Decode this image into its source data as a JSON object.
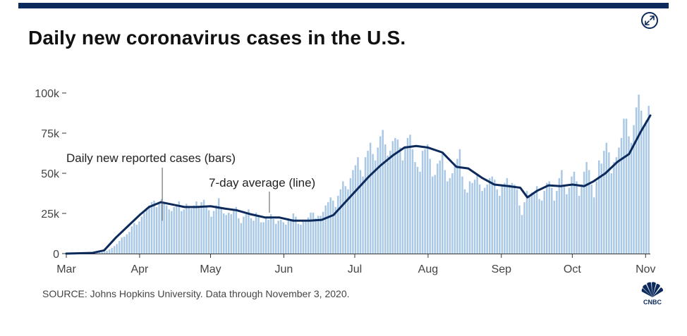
{
  "header": {
    "title": "Daily new coronavirus cases in the U.S."
  },
  "footer": {
    "source": "SOURCE: Johns Hopkins University. Data through November 3, 2020.",
    "logo_text": "CNBC"
  },
  "icons": {
    "expand": "expand-icon",
    "logo": "cnbc-peacock-logo"
  },
  "colors": {
    "bars": "#a9c8e6",
    "line": "#0c2a5b",
    "text": "#444444"
  },
  "chart_data": {
    "type": "bar",
    "title": "Daily new coronavirus cases in the U.S.",
    "x_tick_labels": [
      "Mar",
      "Apr",
      "May",
      "Jun",
      "Jul",
      "Aug",
      "Sep",
      "Oct",
      "Nov"
    ],
    "y_tick_labels": [
      "0",
      "25k",
      "50k",
      "75k",
      "100k"
    ],
    "y_ticks": [
      0,
      25000,
      50000,
      75000,
      100000
    ],
    "ylim": [
      0,
      100000
    ],
    "x_range": [
      "2020-03-01",
      "2020-11-03"
    ],
    "grid": false,
    "annotations": [
      {
        "text": "Daily new reported cases (bars)",
        "date": "2020-04-10",
        "value": 38000
      },
      {
        "text": "7-day average (line)",
        "date": "2020-05-25",
        "value": 25000
      }
    ],
    "series": [
      {
        "kind": "bars",
        "values": [
          0,
          0,
          0,
          0,
          0,
          0,
          100,
          150,
          200,
          300,
          400,
          500,
          600,
          700,
          900,
          1200,
          1700,
          2600,
          3500,
          4700,
          6000,
          7900,
          10000,
          10500,
          12000,
          13500,
          17000,
          19000,
          18000,
          20000,
          23000,
          25500,
          28500,
          30000,
          32000,
          33000,
          29000,
          31000,
          34000,
          32000,
          30000,
          27500,
          26500,
          29000,
          30500,
          32500,
          26500,
          27500,
          31000,
          29500,
          28000,
          30000,
          32500,
          28500,
          32000,
          33500,
          29000,
          27000,
          23000,
          26500,
          30000,
          34500,
          28000,
          25000,
          24000,
          25500,
          24500,
          27000,
          29000,
          22000,
          19000,
          23000,
          24500,
          27500,
          22000,
          20500,
          25500,
          23500,
          19500,
          19500,
          22000,
          21000,
          24500,
          21500,
          18500,
          20500,
          21000,
          19500,
          18000,
          22000,
          20500,
          25000,
          23000,
          18500,
          18000,
          21000,
          20000,
          22500,
          25500,
          25500,
          22000,
          23500,
          23500,
          26000,
          30000,
          32000,
          35000,
          33000,
          29000,
          36000,
          40000,
          45000,
          42000,
          40000,
          47000,
          52000,
          55000,
          60000,
          52000,
          48000,
          60000,
          64000,
          69000,
          62000,
          58000,
          66000,
          73000,
          77000,
          68000,
          61000,
          64000,
          70000,
          72000,
          71000,
          66000,
          58000,
          67000,
          72000,
          74000,
          65000,
          57000,
          54000,
          51000,
          64000,
          65000,
          68000,
          59000,
          48000,
          49000,
          56000,
          58000,
          62000,
          52000,
          45000,
          47000,
          50000,
          56000,
          59000,
          65000,
          48000,
          40000,
          38000,
          45000,
          44000,
          46000,
          49000,
          43000,
          39000,
          41000,
          43000,
          47000,
          48000,
          46000,
          40000,
          36000,
          43000,
          44000,
          47000,
          43000,
          44000,
          43000,
          40000,
          30000,
          24000,
          32000,
          39000,
          36000,
          38000,
          37000,
          42000,
          34000,
          33000,
          39000,
          44000,
          45000,
          41000,
          33000,
          39000,
          47000,
          52000,
          43000,
          37000,
          41000,
          48000,
          51000,
          45000,
          36000,
          43000,
          51000,
          57000,
          52000,
          43000,
          35000,
          45000,
          58000,
          56000,
          64000,
          69000,
          63000,
          50000,
          57000,
          60000,
          66000,
          72000,
          84000,
          84000,
          73000,
          69000,
          80000,
          91000,
          99000,
          89000,
          80000,
          83000,
          92000
        ]
      },
      {
        "kind": "line",
        "name": "7-day average",
        "dates": [
          "2020-03-01",
          "2020-03-12",
          "2020-03-17",
          "2020-03-22",
          "2020-03-27",
          "2020-04-01",
          "2020-04-05",
          "2020-04-10",
          "2020-04-15",
          "2020-04-20",
          "2020-04-25",
          "2020-05-01",
          "2020-05-07",
          "2020-05-12",
          "2020-05-18",
          "2020-05-24",
          "2020-05-30",
          "2020-06-05",
          "2020-06-12",
          "2020-06-17",
          "2020-06-22",
          "2020-06-27",
          "2020-07-02",
          "2020-07-07",
          "2020-07-12",
          "2020-07-17",
          "2020-07-22",
          "2020-07-27",
          "2020-08-01",
          "2020-08-07",
          "2020-08-13",
          "2020-08-18",
          "2020-08-24",
          "2020-08-29",
          "2020-09-04",
          "2020-09-09",
          "2020-09-12",
          "2020-09-16",
          "2020-09-21",
          "2020-09-26",
          "2020-10-01",
          "2020-10-06",
          "2020-10-10",
          "2020-10-15",
          "2020-10-20",
          "2020-10-25",
          "2020-10-30",
          "2020-11-03"
        ],
        "values": [
          0,
          400,
          2000,
          10000,
          17000,
          24000,
          29000,
          32000,
          30500,
          29000,
          29000,
          29500,
          28000,
          27000,
          24500,
          22500,
          22500,
          20500,
          20500,
          21000,
          24000,
          32000,
          40000,
          48000,
          55000,
          61000,
          66000,
          67000,
          66000,
          63000,
          54000,
          53000,
          47000,
          43000,
          42000,
          41000,
          35000,
          39000,
          42500,
          42000,
          43000,
          42000,
          45000,
          50000,
          57000,
          62000,
          76000,
          86000
        ]
      }
    ]
  }
}
